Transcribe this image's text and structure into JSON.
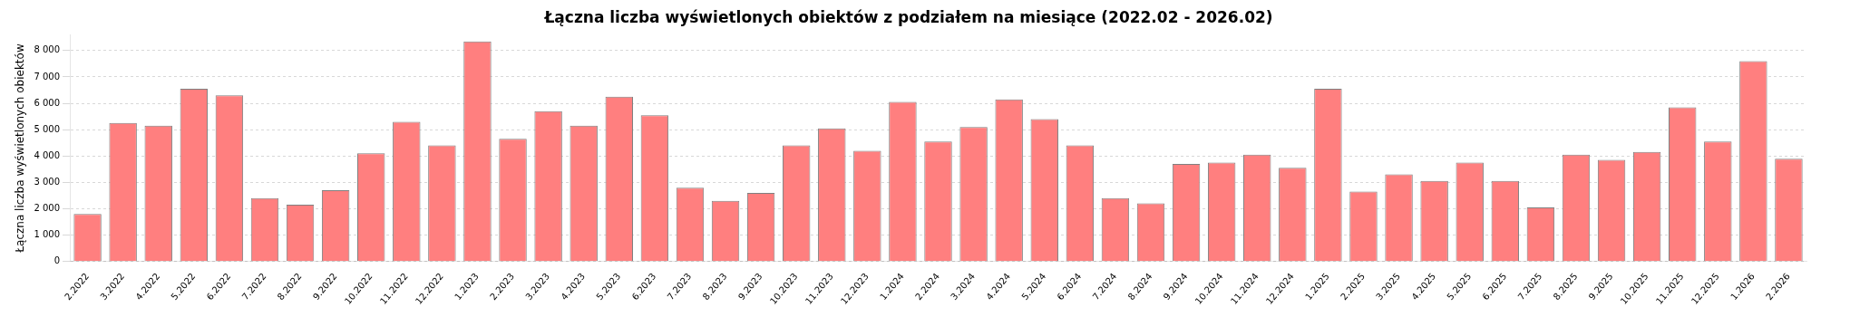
{
  "chart_data": {
    "type": "bar",
    "title": "Łączna liczba wyświetlonych obiektów z podziałem na miesiące (2022.02 - 2026.02)",
    "ylabel": "Łączna liczba wyświetlonych obiektów",
    "categories": [
      "2.2022",
      "3.2022",
      "4.2022",
      "5.2022",
      "6.2022",
      "7.2022",
      "8.2022",
      "9.2022",
      "10.2022",
      "11.2022",
      "12.2022",
      "1.2023",
      "2.2023",
      "3.2023",
      "4.2023",
      "5.2023",
      "6.2023",
      "7.2023",
      "8.2023",
      "9.2023",
      "10.2023",
      "11.2023",
      "12.2023",
      "1.2024",
      "2.2024",
      "3.2024",
      "4.2024",
      "5.2024",
      "6.2024",
      "7.2024",
      "8.2024",
      "9.2024",
      "10.2024",
      "11.2024",
      "12.2024",
      "1.2025",
      "2.2025",
      "3.2025",
      "4.2025",
      "5.2025",
      "6.2025",
      "7.2025",
      "8.2025",
      "9.2025",
      "10.2025",
      "11.2025",
      "12.2025",
      "1.2026",
      "2.2026"
    ],
    "values": [
      1800,
      5250,
      5150,
      6550,
      6300,
      2400,
      2150,
      2700,
      4100,
      5300,
      4400,
      8350,
      4650,
      5700,
      5150,
      6250,
      5550,
      2800,
      2300,
      2600,
      4400,
      5050,
      4200,
      6050,
      4550,
      5100,
      6150,
      5400,
      4400,
      2400,
      2200,
      3700,
      3750,
      4050,
      3550,
      6550,
      2650,
      3300,
      3050,
      3750,
      3050,
      2050,
      4050,
      3850,
      4150,
      5850,
      4550,
      7600,
      3900
    ],
    "color": "#ff7f7f",
    "ylim": [
      0,
      8600
    ],
    "yticks": [
      0,
      {
        "value": 1000,
        "label": "1 000"
      },
      {
        "value": 2000,
        "label": "2 000"
      },
      {
        "value": 3000,
        "label": "3 000"
      },
      {
        "value": 4000,
        "label": "4 000"
      },
      {
        "value": 5000,
        "label": "5 000"
      },
      {
        "value": 6000,
        "label": "6 000"
      },
      {
        "value": 7000,
        "label": "7 000"
      },
      {
        "value": 8000,
        "label": "8 000"
      }
    ],
    "grid": "y",
    "legend": false
  }
}
